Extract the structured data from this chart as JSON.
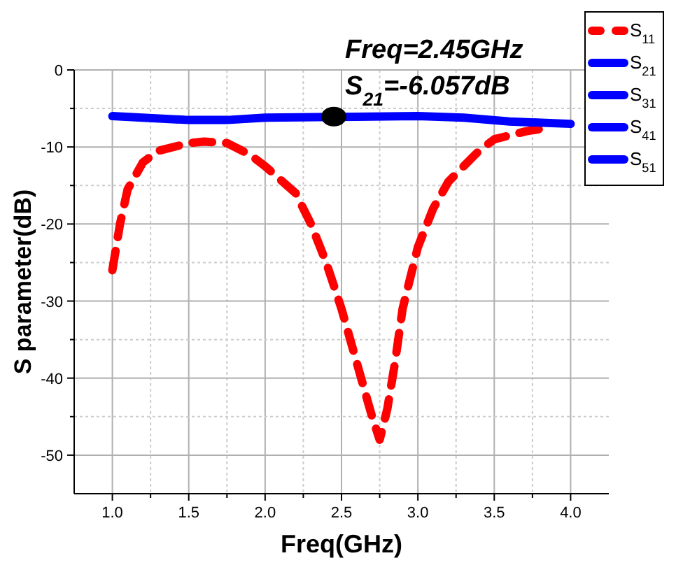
{
  "chart_data": {
    "type": "line",
    "xlabel": "Freq(GHz)",
    "ylabel": "S parameter(dB)",
    "xlim": [
      0.75,
      4.25
    ],
    "ylim": [
      -55,
      0
    ],
    "xticks": [
      {
        "value": 1,
        "label": "1.0"
      },
      {
        "value": 1.25,
        "label": null
      },
      {
        "value": 1.5,
        "label": "1.5"
      },
      {
        "value": 1.75,
        "label": null
      },
      {
        "value": 2,
        "label": "2.0"
      },
      {
        "value": 2.25,
        "label": null
      },
      {
        "value": 2.5,
        "label": "2.5"
      },
      {
        "value": 2.75,
        "label": null
      },
      {
        "value": 3,
        "label": "3.0"
      },
      {
        "value": 3.25,
        "label": null
      },
      {
        "value": 3.5,
        "label": "3.5"
      },
      {
        "value": 3.75,
        "label": null
      },
      {
        "value": 4,
        "label": "4.0"
      }
    ],
    "yticks": [
      0,
      {
        "value": -5,
        "label": null
      },
      -10,
      {
        "value": -15,
        "label": null
      },
      -20,
      {
        "value": -25,
        "label": null
      },
      -30,
      {
        "value": -35,
        "label": null
      },
      -40,
      {
        "value": -45,
        "label": null
      },
      -50
    ],
    "grid": true,
    "legend": "top right",
    "series": [
      {
        "name": "S$_{11}$",
        "color": "#ff0000",
        "line_style": "dashed",
        "x": [
          1.0,
          1.05,
          1.1,
          1.2,
          1.3,
          1.5,
          1.6,
          1.75,
          1.9,
          2.0,
          2.2,
          2.3,
          2.4,
          2.5,
          2.6,
          2.7,
          2.75,
          2.8,
          2.85,
          2.9,
          3.0,
          3.1,
          3.2,
          3.4,
          3.5,
          3.7,
          3.85
        ],
        "values": [
          -26,
          -20,
          -15.5,
          -12,
          -10.5,
          -9.5,
          -9.3,
          -9.5,
          -11,
          -12.5,
          -16,
          -20,
          -25,
          -31,
          -38,
          -45,
          -48,
          -44,
          -38,
          -31,
          -23,
          -18,
          -14.5,
          -10.5,
          -9,
          -8,
          -7.5
        ]
      },
      {
        "name": "S$_{21}$",
        "color": "#0000ff",
        "line_style": "solid",
        "x": [
          1.0,
          1.5,
          1.75,
          2.0,
          2.45,
          3.0,
          3.3,
          3.6,
          4.0
        ],
        "values": [
          -6,
          -6.5,
          -6.5,
          -6.2,
          -6.1,
          -6,
          -6.2,
          -6.7,
          -7
        ]
      },
      {
        "name": "S$_{31}$",
        "color": "#0000ff",
        "line_style": "solid",
        "values": [
          null
        ]
      },
      {
        "name": "S$_{41}$",
        "color": "#0000ff",
        "line_style": "solid",
        "values": [
          null
        ]
      },
      {
        "name": "S$_{51}$",
        "color": "#0000ff",
        "line_style": "solid",
        "values": [
          null
        ]
      }
    ],
    "annotations": [
      {
        "text": "Freq=2.45GHz\nS$_{21}$=-6.057dB",
        "x": 2.45,
        "y": -6.057
      }
    ]
  }
}
